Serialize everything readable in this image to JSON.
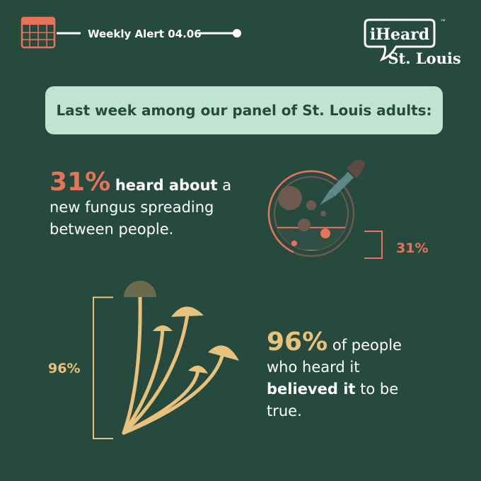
{
  "header": {
    "label": "Weekly Alert 04.06",
    "logo": {
      "brand": "iHeard",
      "trademark": "™",
      "city": "St. Louis"
    }
  },
  "banner": "Last week among our panel of St. Louis adults:",
  "stats": [
    {
      "value": 31,
      "value_label": "31%",
      "bold": "heard about",
      "text": "a new fungus spreading between people.",
      "side_label": "31%"
    },
    {
      "value": 96,
      "value_label": "96%",
      "text_1": "of people who heard it",
      "bold": "believed it",
      "text_2": "to be true.",
      "side_label": "96%"
    }
  ]
}
